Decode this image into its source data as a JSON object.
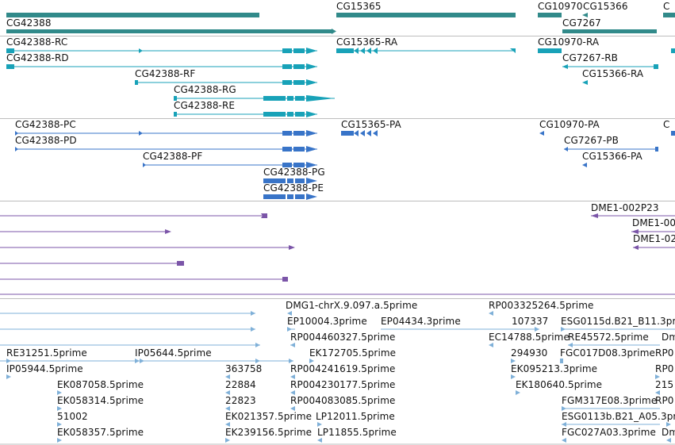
{
  "colors": {
    "gene": "#318a8a",
    "transcript_a": "#18a2b8",
    "transcript_b": "#3874c8",
    "clone": "#7b55a8",
    "est": "#7fb0d8",
    "separator": "#bdbdbd"
  },
  "tracks": [
    {
      "name": "gene-track",
      "features": [
        {
          "label": "",
          "bar": [
            8,
            327
          ],
          "thick": true
        },
        {
          "label": "CG15365",
          "bar": [
            424,
            650
          ],
          "thick": true
        },
        {
          "label": "CG10970",
          "bar": [
            678,
            708
          ],
          "thick": true
        },
        {
          "label": "CG15366",
          "bar": [
            736,
            741
          ],
          "thick": true,
          "arrow": "left"
        },
        {
          "label": "C",
          "bar": [
            836,
            851
          ],
          "thick": true
        },
        {
          "label": "CG42388",
          "bar": [
            8,
            420
          ],
          "thick": true,
          "arrow": "right"
        },
        {
          "label": "CG7267",
          "bar": [
            709,
            828
          ],
          "thick": true
        }
      ]
    },
    {
      "name": "transcript-track-a",
      "features": [
        {
          "label": "CG42388-RC",
          "row": 0
        },
        {
          "label": "CG42388-RD",
          "row": 1
        },
        {
          "label": "CG42388-RF",
          "row": 2
        },
        {
          "label": "CG42388-RG",
          "row": 3
        },
        {
          "label": "CG42388-RE",
          "row": 4
        },
        {
          "label": "CG15365-RA",
          "row": 0
        },
        {
          "label": "CG10970-RA",
          "row": 0
        },
        {
          "label": "CG7267-RB",
          "row": 1
        },
        {
          "label": "CG15366-RA",
          "row": 2
        }
      ]
    },
    {
      "name": "transcript-track-b",
      "features": [
        {
          "label": "CG42388-PC"
        },
        {
          "label": "CG42388-PD"
        },
        {
          "label": "CG42388-PF"
        },
        {
          "label": "CG42388-PG"
        },
        {
          "label": "CG42388-PE"
        },
        {
          "label": "CG15365-PA"
        },
        {
          "label": "CG10970-PA"
        },
        {
          "label": "CG7267-PB"
        },
        {
          "label": "CG15366-PA"
        },
        {
          "label": "C"
        }
      ]
    },
    {
      "name": "clone-track",
      "features": [
        {
          "label": "DME1-002P23"
        },
        {
          "label": "DME1-00"
        },
        {
          "label": "DME1-02"
        }
      ]
    },
    {
      "name": "est-track",
      "features": [
        {
          "label": "DMG1-chrX.9.097.a.5prime"
        },
        {
          "label": "RP003325264.5prime"
        },
        {
          "label": "EP10004.3prime"
        },
        {
          "label": "EP04434.3prime"
        },
        {
          "label": "107337"
        },
        {
          "label": "ESG0115d.B21_B11.3prime"
        },
        {
          "label": "RP004460327.5prime"
        },
        {
          "label": "EC14788.5prime"
        },
        {
          "label": "RE45572.5prime"
        },
        {
          "label": "Dm"
        },
        {
          "label": "RE31251.5prime"
        },
        {
          "label": "IP05644.5prime"
        },
        {
          "label": "EK172705.5prime"
        },
        {
          "label": "294930"
        },
        {
          "label": "FGC017D08.3prime"
        },
        {
          "label": "RP0"
        },
        {
          "label": "IP05944.5prime"
        },
        {
          "label": "363758"
        },
        {
          "label": "RP004241619.5prime"
        },
        {
          "label": "EK095213.3prime"
        },
        {
          "label": "RP0"
        },
        {
          "label": "EK087058.5prime"
        },
        {
          "label": "22884"
        },
        {
          "label": "RP004230177.5prime"
        },
        {
          "label": "EK180640.5prime"
        },
        {
          "label": "215"
        },
        {
          "label": "EK058314.5prime"
        },
        {
          "label": "22823"
        },
        {
          "label": "RP004083085.5prime"
        },
        {
          "label": "FGM317E08.3prime"
        },
        {
          "label": "RP0"
        },
        {
          "label": "51002"
        },
        {
          "label": "EK021357.5prime"
        },
        {
          "label": "LP12011.5prime"
        },
        {
          "label": "ESG0113b.B21_A05.3prime"
        },
        {
          "label": "EK058357.5prime"
        },
        {
          "label": "EK239156.5prime"
        },
        {
          "label": "LP11855.5prime"
        },
        {
          "label": "FGC027A03.3prime"
        },
        {
          "label": "Dm"
        }
      ]
    }
  ]
}
